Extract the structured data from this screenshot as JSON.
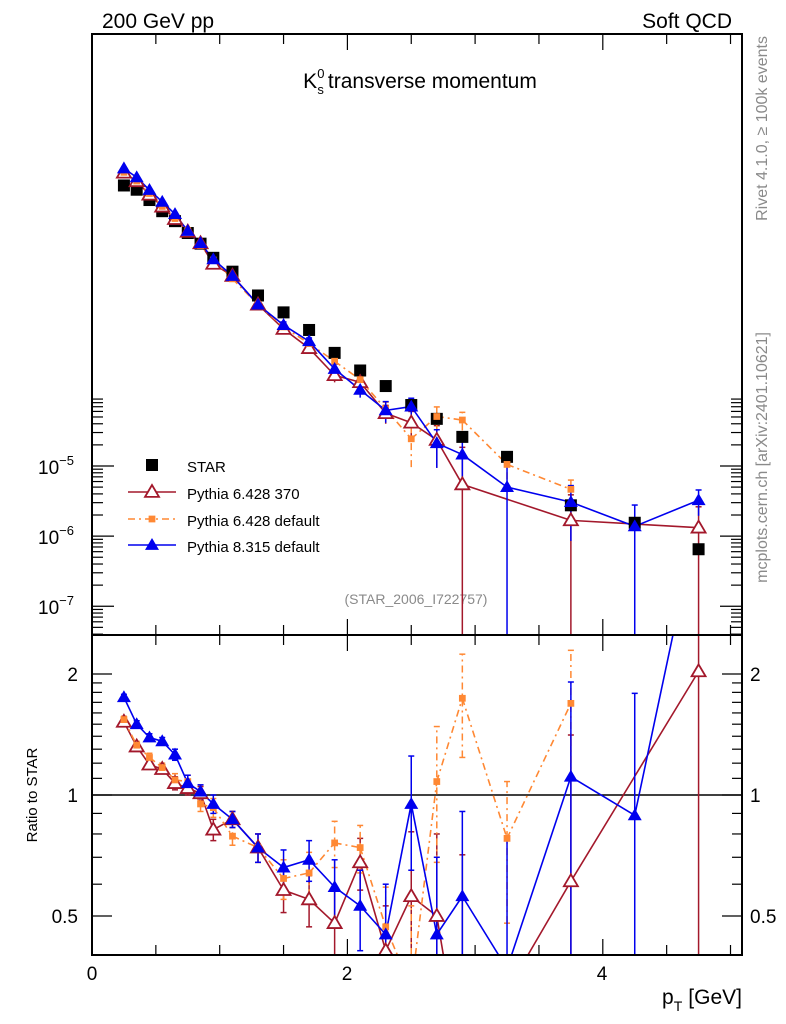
{
  "header": {
    "left": "200 GeV pp",
    "right": "Soft QCD"
  },
  "side_text": {
    "top": "Rivet 4.1.0, ≥ 100k events",
    "bottom": "mcplots.cern.ch [arXiv:2401.10621]"
  },
  "colors": {
    "star": "#000000",
    "p6_370": "#a3182b",
    "p6_default": "#ff8833",
    "p8_default": "#0000ee"
  },
  "chart_data": {
    "type": "scatter",
    "title": "transverse momentum",
    "title_symbol": "K",
    "title_sup": "0",
    "title_sub": "s",
    "analysis_id": "(STAR_2006_I722757)",
    "xlabel": "p",
    "xlabel_sub": "T",
    "xlabel_unit": "[GeV]",
    "xlim": [
      0,
      5.09
    ],
    "x_tick_labels": [
      "0",
      "2",
      "4"
    ],
    "main": {
      "yscale": "log",
      "ylim_log10": [
        -7.41,
        1.16
      ],
      "y_tick_labels": [
        {
          "base": "10",
          "exp": "−5"
        },
        {
          "base": "10",
          "exp": "−6"
        },
        {
          "base": "10",
          "exp": "−7"
        }
      ]
    },
    "ratio": {
      "ylabel": "Ratio to STAR",
      "yscale": "log",
      "ylim": [
        0.4,
        2.5
      ],
      "y_tick_labels": [
        "0.5",
        "1",
        "2"
      ]
    },
    "x": [
      0.25,
      0.35,
      0.45,
      0.55,
      0.65,
      0.75,
      0.85,
      0.95,
      1.1,
      1.3,
      1.5,
      1.7,
      1.9,
      2.1,
      2.3,
      2.5,
      2.7,
      2.9,
      3.25,
      3.75,
      4.25,
      4.75
    ],
    "star": {
      "name": "STAR",
      "values": [
        0.1,
        0.087,
        0.062,
        0.043,
        0.031,
        0.021,
        0.0148,
        0.0093,
        0.0059,
        0.0027,
        0.00155,
        0.00087,
        0.00041,
        0.00023,
        0.000138,
        7.4e-05,
        4.7e-05,
        2.6e-05,
        1.35e-05,
        2.75e-06,
        1.55e-06,
        6.5e-07
      ]
    },
    "series": [
      {
        "name": "Pythia 6.428 370",
        "key": "p6_370",
        "marker": "open-triangle",
        "dash": "solid",
        "ratio": [
          1.52,
          1.32,
          1.19,
          1.16,
          1.07,
          1.04,
          1.01,
          0.82,
          0.87,
          0.74,
          0.58,
          0.55,
          0.48,
          0.68,
          0.41,
          0.56,
          0.5,
          0.21,
          null,
          0.61,
          null,
          2.03
        ],
        "ratio_err": [
          0.03,
          0.03,
          0.03,
          0.03,
          0.04,
          0.04,
          0.04,
          0.05,
          0.04,
          0.06,
          0.07,
          0.08,
          0.1,
          0.1,
          0.12,
          0.25,
          0.3,
          0.5,
          null,
          0.8,
          null,
          2.0
        ]
      },
      {
        "name": "Pythia 6.428 default",
        "key": "p6_default",
        "marker": "square",
        "dash": "dashdot",
        "ratio": [
          1.54,
          1.33,
          1.24,
          1.17,
          1.09,
          1.08,
          0.95,
          0.93,
          0.79,
          0.74,
          0.62,
          0.64,
          0.76,
          0.74,
          0.47,
          0.33,
          1.08,
          1.74,
          0.78,
          1.69,
          null,
          null
        ],
        "ratio_err": [
          0.03,
          0.03,
          0.03,
          0.03,
          0.04,
          0.04,
          0.04,
          0.05,
          0.04,
          0.06,
          0.07,
          0.08,
          0.1,
          0.1,
          0.12,
          0.2,
          0.4,
          0.5,
          0.3,
          0.6,
          null,
          null
        ]
      },
      {
        "name": "Pythia 8.315 default",
        "key": "p8_default",
        "marker": "triangle",
        "dash": "solid",
        "ratio": [
          1.75,
          1.5,
          1.39,
          1.36,
          1.26,
          1.07,
          1.02,
          0.95,
          0.87,
          0.74,
          0.66,
          0.69,
          0.59,
          0.53,
          0.45,
          0.95,
          0.45,
          0.56,
          0.37,
          1.11,
          0.89,
          5.0
        ],
        "ratio_err": [
          0.03,
          0.03,
          0.03,
          0.03,
          0.04,
          0.05,
          0.04,
          0.05,
          0.04,
          0.06,
          0.07,
          0.08,
          0.1,
          0.12,
          0.15,
          0.3,
          0.25,
          0.35,
          0.4,
          0.8,
          0.9,
          2.0
        ]
      }
    ],
    "legend_position": "lower-left"
  }
}
